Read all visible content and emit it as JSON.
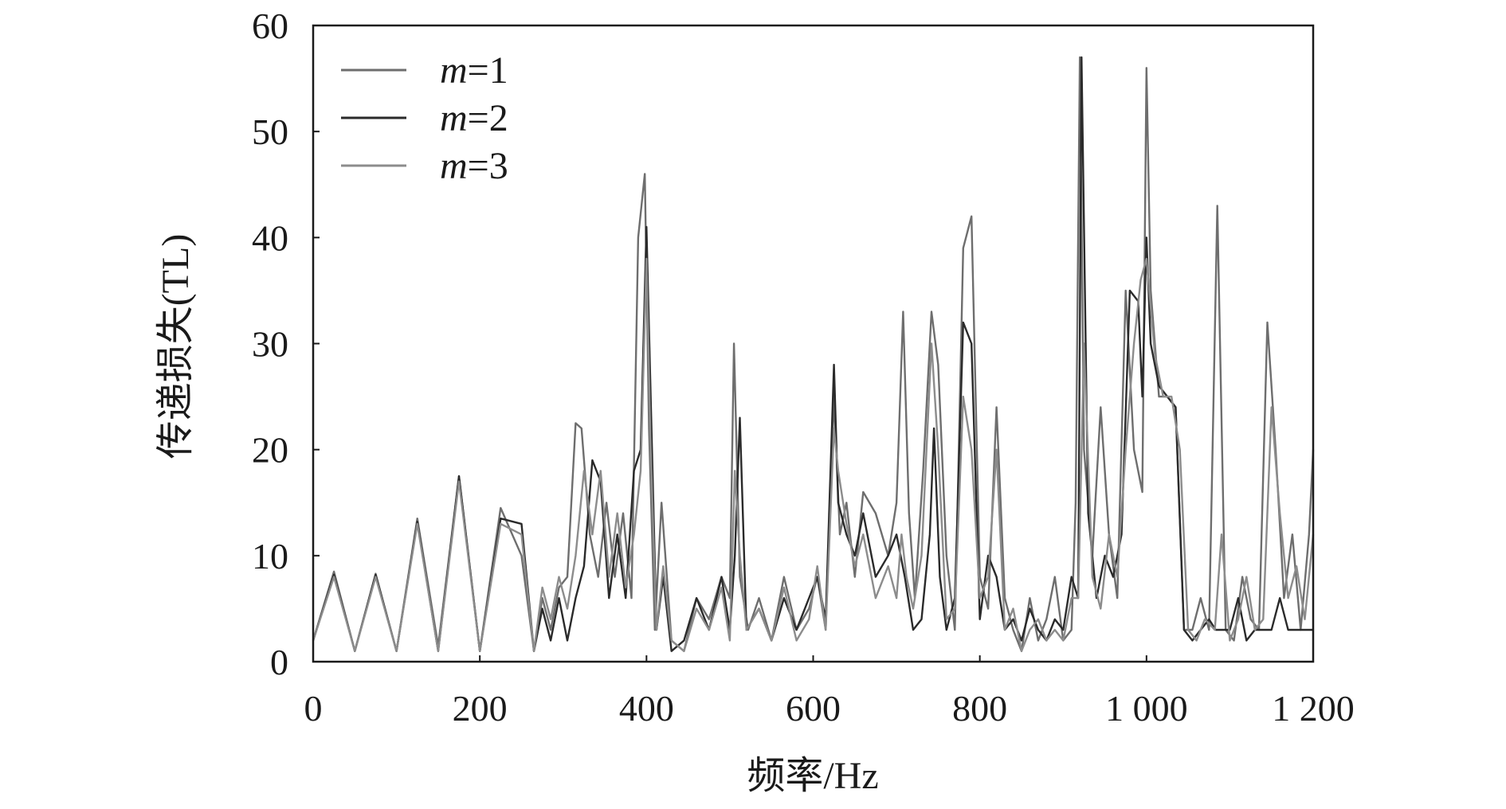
{
  "chart_data": {
    "type": "line",
    "title": "",
    "xlabel": "频率/Hz",
    "ylabel": "传递损失(TL)",
    "xlim": [
      0,
      1200
    ],
    "ylim": [
      0,
      60
    ],
    "xticks": [
      {
        "value": 0,
        "label": "0"
      },
      {
        "value": 200,
        "label": "200"
      },
      {
        "value": 400,
        "label": "400"
      },
      {
        "value": 600,
        "label": "600"
      },
      {
        "value": 800,
        "label": "800"
      },
      {
        "value": 1000,
        "label": "1 000"
      },
      {
        "value": 1200,
        "label": "1 200"
      }
    ],
    "yticks": [
      {
        "value": 0,
        "label": "0"
      },
      {
        "value": 10,
        "label": "10"
      },
      {
        "value": 20,
        "label": "20"
      },
      {
        "value": 30,
        "label": "30"
      },
      {
        "value": 40,
        "label": "40"
      },
      {
        "value": 50,
        "label": "50"
      },
      {
        "value": 60,
        "label": "60"
      }
    ],
    "grid": false,
    "legend_position": "top-left",
    "series": [
      {
        "name": "m=1",
        "var": "m",
        "eq": "=1",
        "color": "#6e6e6e",
        "x": [
          0,
          25,
          50,
          75,
          100,
          125,
          150,
          175,
          200,
          225,
          250,
          265,
          275,
          285,
          295,
          305,
          315,
          322,
          332,
          342,
          352,
          362,
          372,
          382,
          390,
          398,
          403,
          410,
          418,
          430,
          445,
          460,
          475,
          490,
          500,
          505,
          512,
          522,
          535,
          550,
          565,
          580,
          595,
          605,
          615,
          625,
          632,
          640,
          650,
          660,
          675,
          690,
          700,
          708,
          715,
          722,
          732,
          742,
          750,
          760,
          770,
          780,
          790,
          800,
          810,
          820,
          830,
          840,
          850,
          860,
          870,
          880,
          890,
          900,
          910,
          915,
          920,
          925,
          935,
          945,
          955,
          965,
          975,
          985,
          995,
          1000,
          1005,
          1015,
          1025,
          1035,
          1045,
          1055,
          1065,
          1075,
          1085,
          1095,
          1105,
          1115,
          1125,
          1135,
          1145,
          1155,
          1165,
          1175,
          1185,
          1195,
          1200
        ],
        "y": [
          2,
          8.5,
          1,
          8.3,
          1,
          13.5,
          1.5,
          17.5,
          1,
          14.5,
          10,
          1,
          6,
          3,
          7,
          8,
          22.5,
          22,
          12,
          8,
          15,
          8,
          14,
          6,
          40,
          46,
          22,
          3,
          15,
          2,
          1,
          6,
          4,
          8,
          6,
          30,
          8,
          3,
          6,
          2,
          8,
          3,
          5,
          8,
          3,
          25,
          12,
          15,
          8,
          16,
          14,
          10,
          15,
          33,
          14,
          6,
          18,
          33,
          28,
          10,
          3,
          39,
          42,
          8,
          5,
          24,
          6,
          3,
          1,
          6,
          2,
          4,
          8,
          2,
          3,
          15,
          57,
          20,
          10,
          24,
          12,
          6,
          35,
          20,
          16,
          56,
          35,
          25,
          25,
          24,
          3,
          3,
          6,
          3,
          43,
          3,
          2,
          8,
          4,
          3,
          32,
          20,
          6,
          12,
          3,
          12,
          20
        ]
      },
      {
        "name": "m=2",
        "var": "m",
        "eq": "=2",
        "color": "#2a2a2a",
        "x": [
          0,
          25,
          50,
          75,
          100,
          125,
          150,
          175,
          200,
          225,
          250,
          265,
          275,
          285,
          295,
          305,
          315,
          325,
          335,
          345,
          355,
          365,
          375,
          385,
          393,
          400,
          405,
          412,
          420,
          430,
          445,
          460,
          475,
          490,
          500,
          506,
          512,
          520,
          535,
          550,
          565,
          580,
          595,
          605,
          615,
          625,
          630,
          640,
          650,
          660,
          675,
          690,
          700,
          710,
          720,
          730,
          740,
          745,
          752,
          760,
          770,
          780,
          790,
          800,
          810,
          820,
          830,
          840,
          850,
          860,
          870,
          880,
          890,
          900,
          910,
          918,
          922,
          930,
          940,
          950,
          960,
          970,
          980,
          990,
          995,
          1000,
          1005,
          1015,
          1025,
          1035,
          1045,
          1055,
          1065,
          1075,
          1083,
          1090,
          1100,
          1110,
          1120,
          1130,
          1140,
          1150,
          1160,
          1170,
          1180,
          1190,
          1200
        ],
        "y": [
          2,
          8.2,
          1,
          8.2,
          1,
          13.2,
          1,
          17.5,
          1,
          13.5,
          13,
          1,
          5,
          2,
          6,
          2,
          6,
          9,
          19,
          17,
          6,
          12,
          6,
          18,
          20,
          41,
          25,
          3,
          8,
          1,
          2,
          6,
          3,
          8,
          3,
          10,
          23,
          3,
          5,
          2,
          6,
          3,
          6,
          8,
          4,
          28,
          15,
          12,
          10,
          14,
          8,
          10,
          12,
          8,
          3,
          4,
          12,
          22,
          8,
          3,
          6,
          32,
          30,
          4,
          10,
          8,
          3,
          4,
          2,
          5,
          3,
          2,
          4,
          3,
          8,
          6,
          57,
          14,
          6,
          10,
          8,
          12,
          35,
          34,
          25,
          40,
          30,
          26,
          25,
          24,
          3,
          2,
          3,
          4,
          3,
          3,
          3,
          6,
          2,
          3,
          3,
          3,
          6,
          3,
          3,
          3,
          3
        ]
      },
      {
        "name": "m=3",
        "var": "m",
        "eq": "=3",
        "color": "#8c8c8c",
        "x": [
          0,
          25,
          50,
          75,
          100,
          125,
          150,
          175,
          200,
          225,
          250,
          265,
          275,
          285,
          295,
          305,
          315,
          325,
          335,
          345,
          355,
          365,
          375,
          385,
          393,
          400,
          405,
          412,
          420,
          430,
          445,
          460,
          475,
          490,
          500,
          506,
          512,
          520,
          535,
          550,
          565,
          580,
          595,
          605,
          615,
          625,
          630,
          640,
          650,
          660,
          675,
          690,
          700,
          706,
          712,
          720,
          730,
          742,
          750,
          760,
          770,
          780,
          790,
          800,
          810,
          820,
          830,
          840,
          850,
          860,
          870,
          880,
          890,
          900,
          910,
          918,
          925,
          935,
          945,
          955,
          965,
          975,
          985,
          993,
          1000,
          1010,
          1020,
          1030,
          1040,
          1050,
          1060,
          1070,
          1082,
          1090,
          1100,
          1110,
          1120,
          1130,
          1140,
          1150,
          1160,
          1170,
          1180,
          1190,
          1200
        ],
        "y": [
          2,
          8,
          1,
          8,
          1,
          13,
          1,
          17,
          1,
          13,
          12,
          1,
          7,
          4,
          8,
          5,
          10,
          18,
          12,
          18,
          8,
          14,
          7,
          12,
          18,
          38,
          20,
          3,
          9,
          2,
          1,
          5,
          3,
          7,
          2,
          18,
          10,
          3,
          5,
          2,
          7,
          2,
          4,
          9,
          3,
          22,
          18,
          13,
          9,
          12,
          6,
          9,
          6,
          12,
          8,
          5,
          10,
          30,
          20,
          4,
          5,
          25,
          20,
          6,
          8,
          20,
          3,
          5,
          1,
          3,
          4,
          2,
          3,
          2,
          6,
          6,
          30,
          8,
          5,
          12,
          8,
          20,
          30,
          36,
          38,
          29,
          25,
          25,
          20,
          3,
          2,
          4,
          3,
          12,
          2,
          4,
          8,
          3,
          4,
          24,
          14,
          6,
          9,
          4,
          12
        ]
      }
    ]
  }
}
